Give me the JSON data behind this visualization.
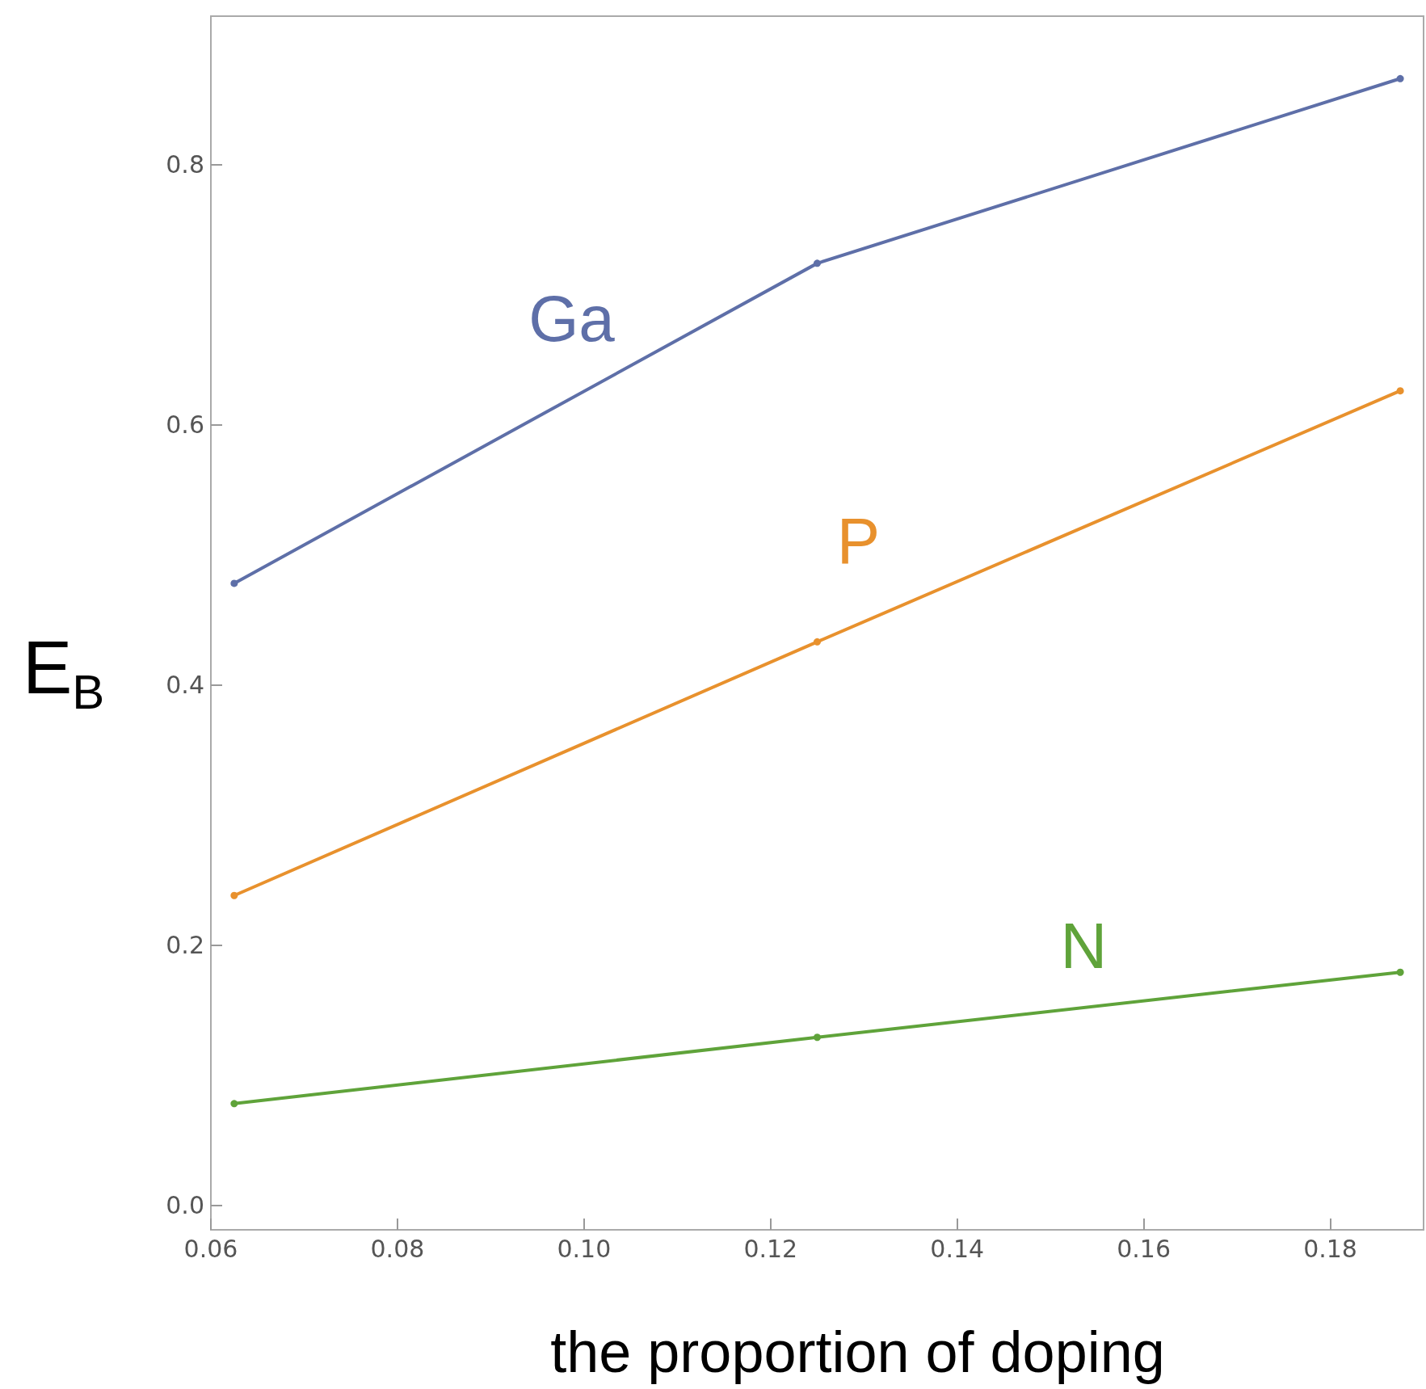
{
  "chart_data": {
    "type": "line",
    "xlabel": "the proportion of doping",
    "ylabel": "E$_{B}$",
    "x": [
      0.0625,
      0.125,
      0.1875
    ],
    "series": [
      {
        "name": "Ga",
        "color": "#5e6fa8",
        "values": [
          0.478,
          0.724,
          0.866
        ]
      },
      {
        "name": "P",
        "color": "#e8912d",
        "values": [
          0.238,
          0.433,
          0.626
        ]
      },
      {
        "name": "N",
        "color": "#5fa33a",
        "values": [
          0.078,
          0.129,
          0.179
        ]
      }
    ],
    "xlim": [
      0.06,
      0.19
    ],
    "ylim": [
      -0.019,
      0.914
    ],
    "xticks": [
      {
        "value": 0.06,
        "label": "0.06"
      },
      {
        "value": 0.08,
        "label": "0.08"
      },
      {
        "value": 0.1,
        "label": "0.10"
      },
      {
        "value": 0.12,
        "label": "0.12"
      },
      {
        "value": 0.14,
        "label": "0.14"
      },
      {
        "value": 0.16,
        "label": "0.16"
      },
      {
        "value": 0.18,
        "label": "0.18"
      }
    ],
    "yticks": [
      {
        "value": 0,
        "label": "0.0"
      },
      {
        "value": 0.2,
        "label": "0.2"
      },
      {
        "value": 0.4,
        "label": "0.4"
      },
      {
        "value": 0.6,
        "label": "0.6"
      },
      {
        "value": 0.8,
        "label": "0.8"
      }
    ],
    "grid": false,
    "legend": false,
    "marker": "circle",
    "line_style": "solid"
  }
}
